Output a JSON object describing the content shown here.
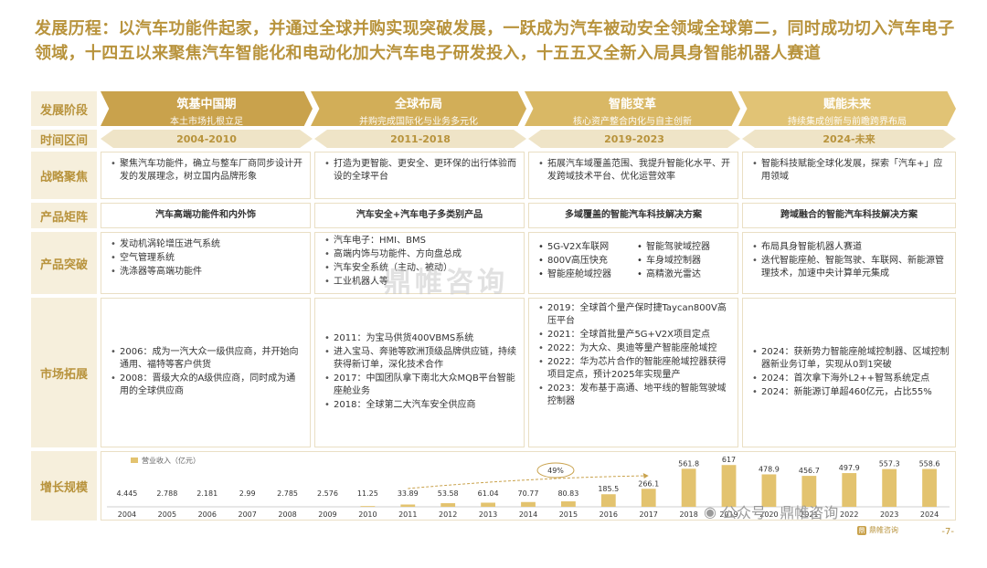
{
  "title": "发展历程：以汽车功能件起家，并通过全球并购实现突破发展，一跃成为汽车被动安全领域全球第二，同时成功切入汽车电子领域，十四五以来聚焦汽车智能化和电动化加大汽车电子研发投入，十五五又全新入局具身智能机器人赛道",
  "row_labels": {
    "stage": "发展阶段",
    "period": "时间区间",
    "strategy": "战略聚焦",
    "product_matrix": "产品矩阵",
    "product_breakthrough": "产品突破",
    "market": "市场拓展",
    "growth": "增长规模"
  },
  "colors": {
    "gold": "#b8933c",
    "header1": "#c9a24c",
    "header_light": "#d7b766",
    "bar": "#e3c36f"
  },
  "stages": [
    {
      "name": "筑基中国期",
      "desc": "本土市场扎根立足",
      "period": "2004-2010",
      "strategy": [
        "聚焦汽车功能件，确立与整车厂商同步设计开发的发展理念，树立国内品牌形象"
      ],
      "matrix": "汽车高端功能件和内外饰",
      "products": [
        "发动机涡轮增压进气系统",
        "空气管理系统",
        "洗涤器等高端功能件"
      ],
      "market": [
        "2006：成为一汽大众一级供应商，并开始向通用、福特等客户供货",
        "2008：晋级大众的A级供应商，同时成为通用的全球供应商"
      ]
    },
    {
      "name": "全球布局",
      "desc": "并购完成国际化与业务多元化",
      "period": "2011-2018",
      "strategy": [
        "打造为更智能、更安全、更环保的出行体验而设的全球平台"
      ],
      "matrix": "汽车安全+汽车电子多类别产品",
      "products": [
        "汽车电子：HMI、BMS",
        "高端内饰与功能件、方向盘总成",
        "汽车安全系统（主动、被动）",
        "工业机器人等"
      ],
      "market": [
        "2011：为宝马供货400VBMS系统",
        "进入宝马、奔驰等欧洲顶级品牌供应链，持续获得新订单，深化技术合作",
        "2017：中国团队拿下南北大众MQB平台智能座舱业务",
        "2018：全球第二大汽车安全供应商"
      ]
    },
    {
      "name": "智能变革",
      "desc": "核心资产整合内化与自主创新",
      "period": "2019-2023",
      "strategy": [
        "拓展汽车域覆盖范围、我提升智能化水平、开发跨域技术平台、优化运营效率"
      ],
      "matrix": "多域覆盖的智能汽车科技解决方案",
      "products": [
        "5G-V2X车联网",
        "智能驾驶域控器",
        "800V高压快充",
        "车身域控制器",
        "智能座舱域控器",
        "高精激光雷达"
      ],
      "market": [
        "2019：全球首个量产保时捷Taycan800V高压平台",
        "2021：全球首批量产5G+V2X项目定点",
        "2022：为大众、奥迪等量产智能座舱域控",
        "2022：华为芯片合作的智能座舱域控器获得项目定点，预计2025年实现量产",
        "2023：发布基于高通、地平线的智能驾驶域控制器"
      ]
    },
    {
      "name": "赋能未来",
      "desc": "持续集成创新与前瞻跨界布局",
      "period": "2024-未来",
      "strategy": [
        "智能科技赋能全球化发展，探索「汽车+」应用领域"
      ],
      "matrix": "跨域融合的智能汽车科技解决方案",
      "products": [
        "布局具身智能机器人赛道",
        "迭代智能座舱、智能驾驶、车联网、新能源管理技术，加速中央计算单元集成"
      ],
      "market": [
        "2024：获新势力智能座舱域控制器、区域控制器新业务订单，实现从0到1突破",
        "2024：首次拿下海外L2++智驾系统定点",
        "2024：新能源订单超460亿元，占比55%"
      ]
    }
  ],
  "chart_data": {
    "type": "bar",
    "legend": "营业收入（亿元）",
    "categories": [
      "2004",
      "2005",
      "2006",
      "2007",
      "2008",
      "2009",
      "2010",
      "2011",
      "2012",
      "2013",
      "2014",
      "2015",
      "2016",
      "2017",
      "2018",
      "2019",
      "2020",
      "2021",
      "2022",
      "2023",
      "2024"
    ],
    "values": [
      4.445,
      2.788,
      2.181,
      2.99,
      2.785,
      2.576,
      11.25,
      33.89,
      53.58,
      61.04,
      70.77,
      80.83,
      185.5,
      266.1,
      561.8,
      617,
      478.9,
      456.7,
      497.9,
      557.3,
      558.6
    ],
    "labels": [
      "4.445",
      "2.788",
      "2.181",
      "2.99",
      "2.785",
      "2.576",
      "11.25",
      "33.89",
      "53.58",
      "61.04",
      "70.77",
      "80.83",
      "185.5",
      "266.1",
      "561.8",
      "617",
      "478.9",
      "456.7",
      "497.9",
      "557.3",
      "558.6"
    ],
    "annotation": "49%",
    "ylim": [
      0,
      620
    ]
  },
  "watermark": "鼎帷咨询",
  "wechat_text": "公众号 · 鼎帷咨询",
  "logo_text": "鼎帷咨询",
  "page_number": "-7-"
}
